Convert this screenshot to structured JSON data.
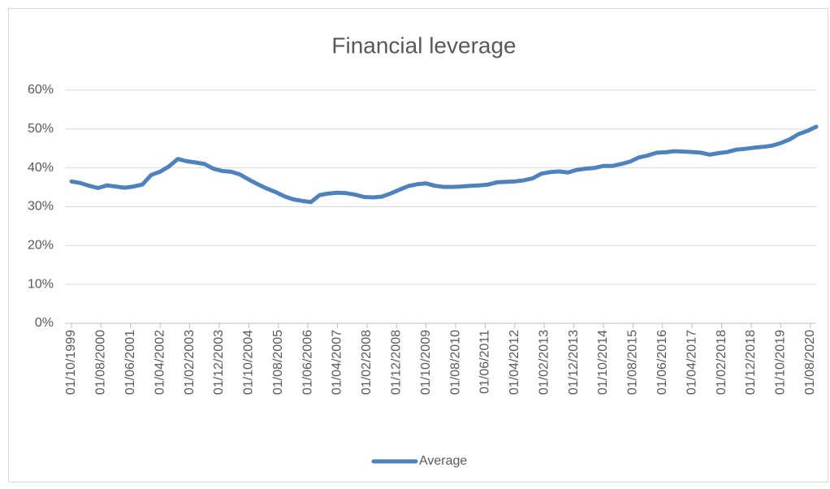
{
  "chart_data": {
    "type": "line",
    "title": "Financial leverage",
    "x": [
      "01/10/1999",
      "01/01/2000",
      "01/04/2000",
      "01/07/2000",
      "01/10/2000",
      "01/01/2001",
      "01/04/2001",
      "01/07/2001",
      "01/10/2001",
      "01/01/2002",
      "01/04/2002",
      "01/07/2002",
      "01/10/2002",
      "01/01/2003",
      "01/04/2003",
      "01/07/2003",
      "01/10/2003",
      "01/01/2004",
      "01/04/2004",
      "01/07/2004",
      "01/10/2004",
      "01/01/2005",
      "01/04/2005",
      "01/07/2005",
      "01/10/2005",
      "01/01/2006",
      "01/04/2006",
      "01/07/2006",
      "01/10/2006",
      "01/01/2007",
      "01/04/2007",
      "01/07/2007",
      "01/10/2007",
      "01/01/2008",
      "01/04/2008",
      "01/07/2008",
      "01/10/2008",
      "01/01/2009",
      "01/04/2009",
      "01/07/2009",
      "01/10/2009",
      "01/01/2010",
      "01/04/2010",
      "01/07/2010",
      "01/10/2010",
      "01/01/2011",
      "01/04/2011",
      "01/07/2011",
      "01/10/2011",
      "01/01/2012",
      "01/04/2012",
      "01/07/2012",
      "01/10/2012",
      "01/01/2013",
      "01/04/2013",
      "01/07/2013",
      "01/10/2013",
      "01/01/2014",
      "01/04/2014",
      "01/07/2014",
      "01/10/2014",
      "01/01/2015",
      "01/04/2015",
      "01/07/2015",
      "01/10/2015",
      "01/01/2016",
      "01/04/2016",
      "01/07/2016",
      "01/10/2016",
      "01/01/2017",
      "01/04/2017",
      "01/07/2017",
      "01/10/2017",
      "01/01/2018",
      "01/04/2018",
      "01/07/2018",
      "01/10/2018",
      "01/01/2019",
      "01/04/2019",
      "01/07/2019",
      "01/10/2019",
      "01/01/2020",
      "01/04/2020",
      "01/07/2020",
      "01/10/2020"
    ],
    "series": [
      {
        "name": "Average",
        "color": "#4f81bd",
        "values": [
          36.5,
          36.1,
          35.4,
          34.8,
          35.5,
          35.2,
          34.9,
          35.2,
          35.7,
          38.2,
          39.0,
          40.4,
          42.3,
          41.7,
          41.4,
          41.0,
          39.8,
          39.2,
          39.0,
          38.3,
          37.0,
          35.8,
          34.7,
          33.8,
          32.7,
          31.9,
          31.5,
          31.2,
          33.0,
          33.4,
          33.6,
          33.5,
          33.1,
          32.5,
          32.4,
          32.6,
          33.4,
          34.4,
          35.3,
          35.8,
          36.0,
          35.4,
          35.1,
          35.1,
          35.2,
          35.4,
          35.5,
          35.7,
          36.3,
          36.4,
          36.5,
          36.8,
          37.3,
          38.5,
          38.9,
          39.1,
          38.8,
          39.5,
          39.8,
          40.0,
          40.5,
          40.5,
          41.0,
          41.6,
          42.7,
          43.2,
          43.9,
          44.0,
          44.3,
          44.2,
          44.1,
          43.9,
          43.4,
          43.8,
          44.1,
          44.7,
          44.9,
          45.2,
          45.4,
          45.7,
          46.4,
          47.3,
          48.7,
          49.5,
          50.6
        ]
      }
    ],
    "xlim": [
      "01/10/1999",
      "01/10/2020"
    ],
    "xticks": [
      "01/10/1999",
      "01/08/2000",
      "01/06/2001",
      "01/04/2002",
      "01/02/2003",
      "01/12/2003",
      "01/10/2004",
      "01/08/2005",
      "01/06/2006",
      "01/04/2007",
      "01/02/2008",
      "01/12/2008",
      "01/10/2009",
      "01/08/2010",
      "01/06/2011",
      "01/04/2012",
      "01/02/2013",
      "01/12/2013",
      "01/10/2014",
      "01/08/2015",
      "01/06/2016",
      "01/04/2017",
      "01/02/2018",
      "01/12/2018",
      "01/10/2019",
      "01/08/2020"
    ],
    "ylim": [
      0,
      60
    ],
    "yticks": [
      {
        "value": 0,
        "label": "0%"
      },
      {
        "value": 10,
        "label": "10%"
      },
      {
        "value": 20,
        "label": "20%"
      },
      {
        "value": 30,
        "label": "30%"
      },
      {
        "value": 40,
        "label": "40%"
      },
      {
        "value": 50,
        "label": "50%"
      },
      {
        "value": 60,
        "label": "60%"
      }
    ],
    "grid": true,
    "legend": "bottom"
  }
}
